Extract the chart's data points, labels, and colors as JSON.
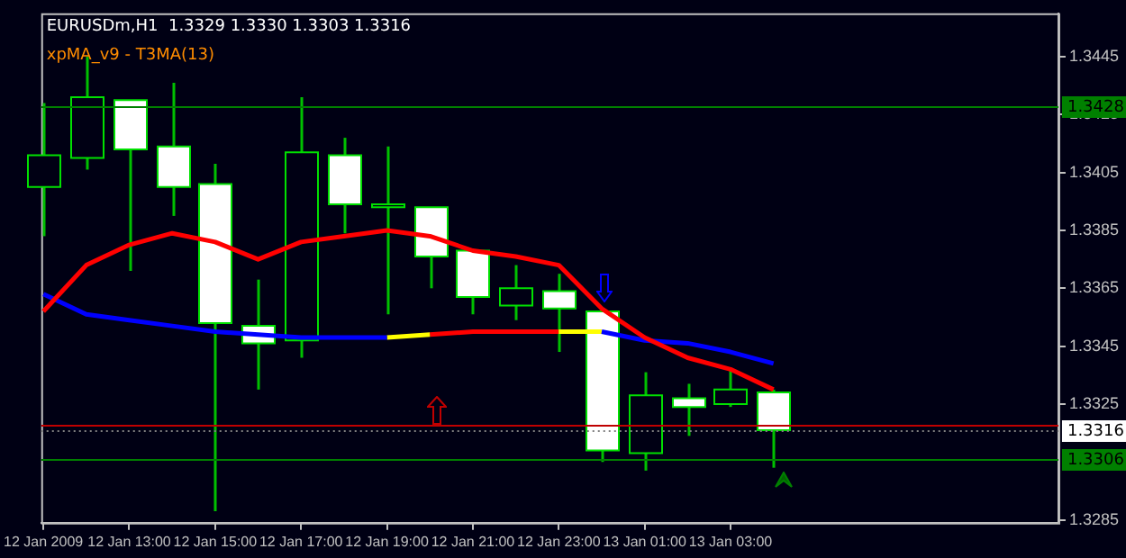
{
  "chart_data": {
    "type": "candlestick",
    "title": "EURUSDm,H1  1.3329 1.3330 1.3303 1.3316",
    "subtitle": "xpMA_v9 - T3MA(13)",
    "x": [
      "2009-01-12T11:00",
      "2009-01-12T12:00",
      "2009-01-12T13:00",
      "2009-01-12T14:00",
      "2009-01-12T15:00",
      "2009-01-12T16:00",
      "2009-01-12T17:00",
      "2009-01-12T18:00",
      "2009-01-12T19:00",
      "2009-01-12T20:00",
      "2009-01-12T21:00",
      "2009-01-12T22:00",
      "2009-01-12T23:00",
      "2009-01-13T00:00",
      "2009-01-13T01:00",
      "2009-01-13T02:00",
      "2009-01-13T03:00",
      "2009-01-13T04:00"
    ],
    "ohlc": [
      [
        1.34,
        1.3429,
        1.3383,
        1.3411
      ],
      [
        1.341,
        1.3445,
        1.3406,
        1.3431
      ],
      [
        1.343,
        1.343,
        1.3371,
        1.3413
      ],
      [
        1.3414,
        1.3436,
        1.339,
        1.34
      ],
      [
        1.3401,
        1.3408,
        1.3288,
        1.3353
      ],
      [
        1.3352,
        1.3368,
        1.333,
        1.3346
      ],
      [
        1.3347,
        1.3431,
        1.3341,
        1.3412
      ],
      [
        1.3411,
        1.3417,
        1.3384,
        1.3394
      ],
      [
        1.3393,
        1.3414,
        1.3356,
        1.3394
      ],
      [
        1.3393,
        1.3393,
        1.3365,
        1.3376
      ],
      [
        1.3378,
        1.3378,
        1.3356,
        1.3362
      ],
      [
        1.3359,
        1.3373,
        1.3354,
        1.3365
      ],
      [
        1.3364,
        1.337,
        1.3343,
        1.3358
      ],
      [
        1.3357,
        1.3357,
        1.3305,
        1.3309
      ],
      [
        1.3308,
        1.3336,
        1.3302,
        1.3328
      ],
      [
        1.3327,
        1.3332,
        1.3314,
        1.3324
      ],
      [
        1.3325,
        1.3337,
        1.3324,
        1.333
      ],
      [
        1.3329,
        1.333,
        1.3303,
        1.3316
      ]
    ],
    "colors": [
      "#000014",
      "#000014",
      "#ffffff",
      "#ffffff",
      "#ffffff",
      "#ffffff",
      "#000014",
      "#ffffff",
      "#000014",
      "#ffffff",
      "#ffffff",
      "#000014",
      "#ffffff",
      "#ffffff",
      "#000014",
      "#ffffff",
      "#000014",
      "#ffffff"
    ],
    "series": [
      {
        "type": "line",
        "color": "#ff0000",
        "values": [
          1.3357,
          1.3373,
          1.338,
          1.3384,
          1.3381,
          1.3375,
          1.3381,
          1.3383,
          1.3385,
          1.3383,
          1.3378,
          1.3376,
          1.3373,
          1.3358,
          1.3348,
          1.3341,
          1.3337,
          1.333
        ]
      },
      {
        "type": "line",
        "color": "#0000ff",
        "values": [
          1.3363,
          1.3356,
          1.3354,
          1.3352,
          1.335,
          1.3349,
          1.3348,
          1.3348,
          1.3348,
          null,
          null,
          null,
          null,
          1.335,
          1.3347,
          1.3346,
          1.3343,
          1.3339
        ]
      },
      {
        "type": "line",
        "color": "#ffff00",
        "values": [
          null,
          null,
          null,
          null,
          null,
          null,
          null,
          null,
          1.3348,
          1.3349,
          null,
          null,
          1.335,
          1.335,
          null,
          null,
          null,
          null
        ]
      },
      {
        "type": "line",
        "color": "#ff0000",
        "values": [
          null,
          null,
          null,
          null,
          null,
          null,
          null,
          null,
          null,
          1.3349,
          1.335,
          1.335,
          1.335,
          null,
          null,
          null,
          null,
          null
        ]
      }
    ],
    "xlim": [
      "2009-01-12T10:57",
      "2009-01-13T10:38"
    ],
    "xticks": [
      {
        "value": "2009-01-12T11:00",
        "label": "12 Jan 2009"
      },
      {
        "value": "2009-01-12T13:00",
        "label": "12 Jan 13:00"
      },
      {
        "value": "2009-01-12T15:00",
        "label": "12 Jan 15:00"
      },
      {
        "value": "2009-01-12T17:00",
        "label": "12 Jan 17:00"
      },
      {
        "value": "2009-01-12T19:00",
        "label": "12 Jan 19:00"
      },
      {
        "value": "2009-01-12T21:00",
        "label": "12 Jan 21:00"
      },
      {
        "value": "2009-01-12T23:00",
        "label": "12 Jan 23:00"
      },
      {
        "value": "2009-01-13T01:00",
        "label": "13 Jan 01:00"
      },
      {
        "value": "2009-01-13T03:00",
        "label": "13 Jan 03:00"
      }
    ],
    "ylim": [
      1.3284,
      1.346
    ],
    "yticks": [
      1.3445,
      1.3425,
      1.3405,
      1.3385,
      1.3365,
      1.3345,
      1.3325,
      1.3285
    ],
    "ref_lines": [
      {
        "axis": "y",
        "value": 1.3428,
        "label": "1.3428",
        "color": "#008000"
      },
      {
        "axis": "y",
        "value": 1.3318,
        "color": "#c00000"
      },
      {
        "axis": "y",
        "value": 1.3316,
        "label": "1.3316",
        "color": "#808080",
        "line_style": "dotted"
      },
      {
        "axis": "y",
        "value": 1.3306,
        "label": "1.3306",
        "color": "#008000"
      }
    ],
    "grid": false,
    "legend": false,
    "marker": "none",
    "line_style": "solid"
  }
}
